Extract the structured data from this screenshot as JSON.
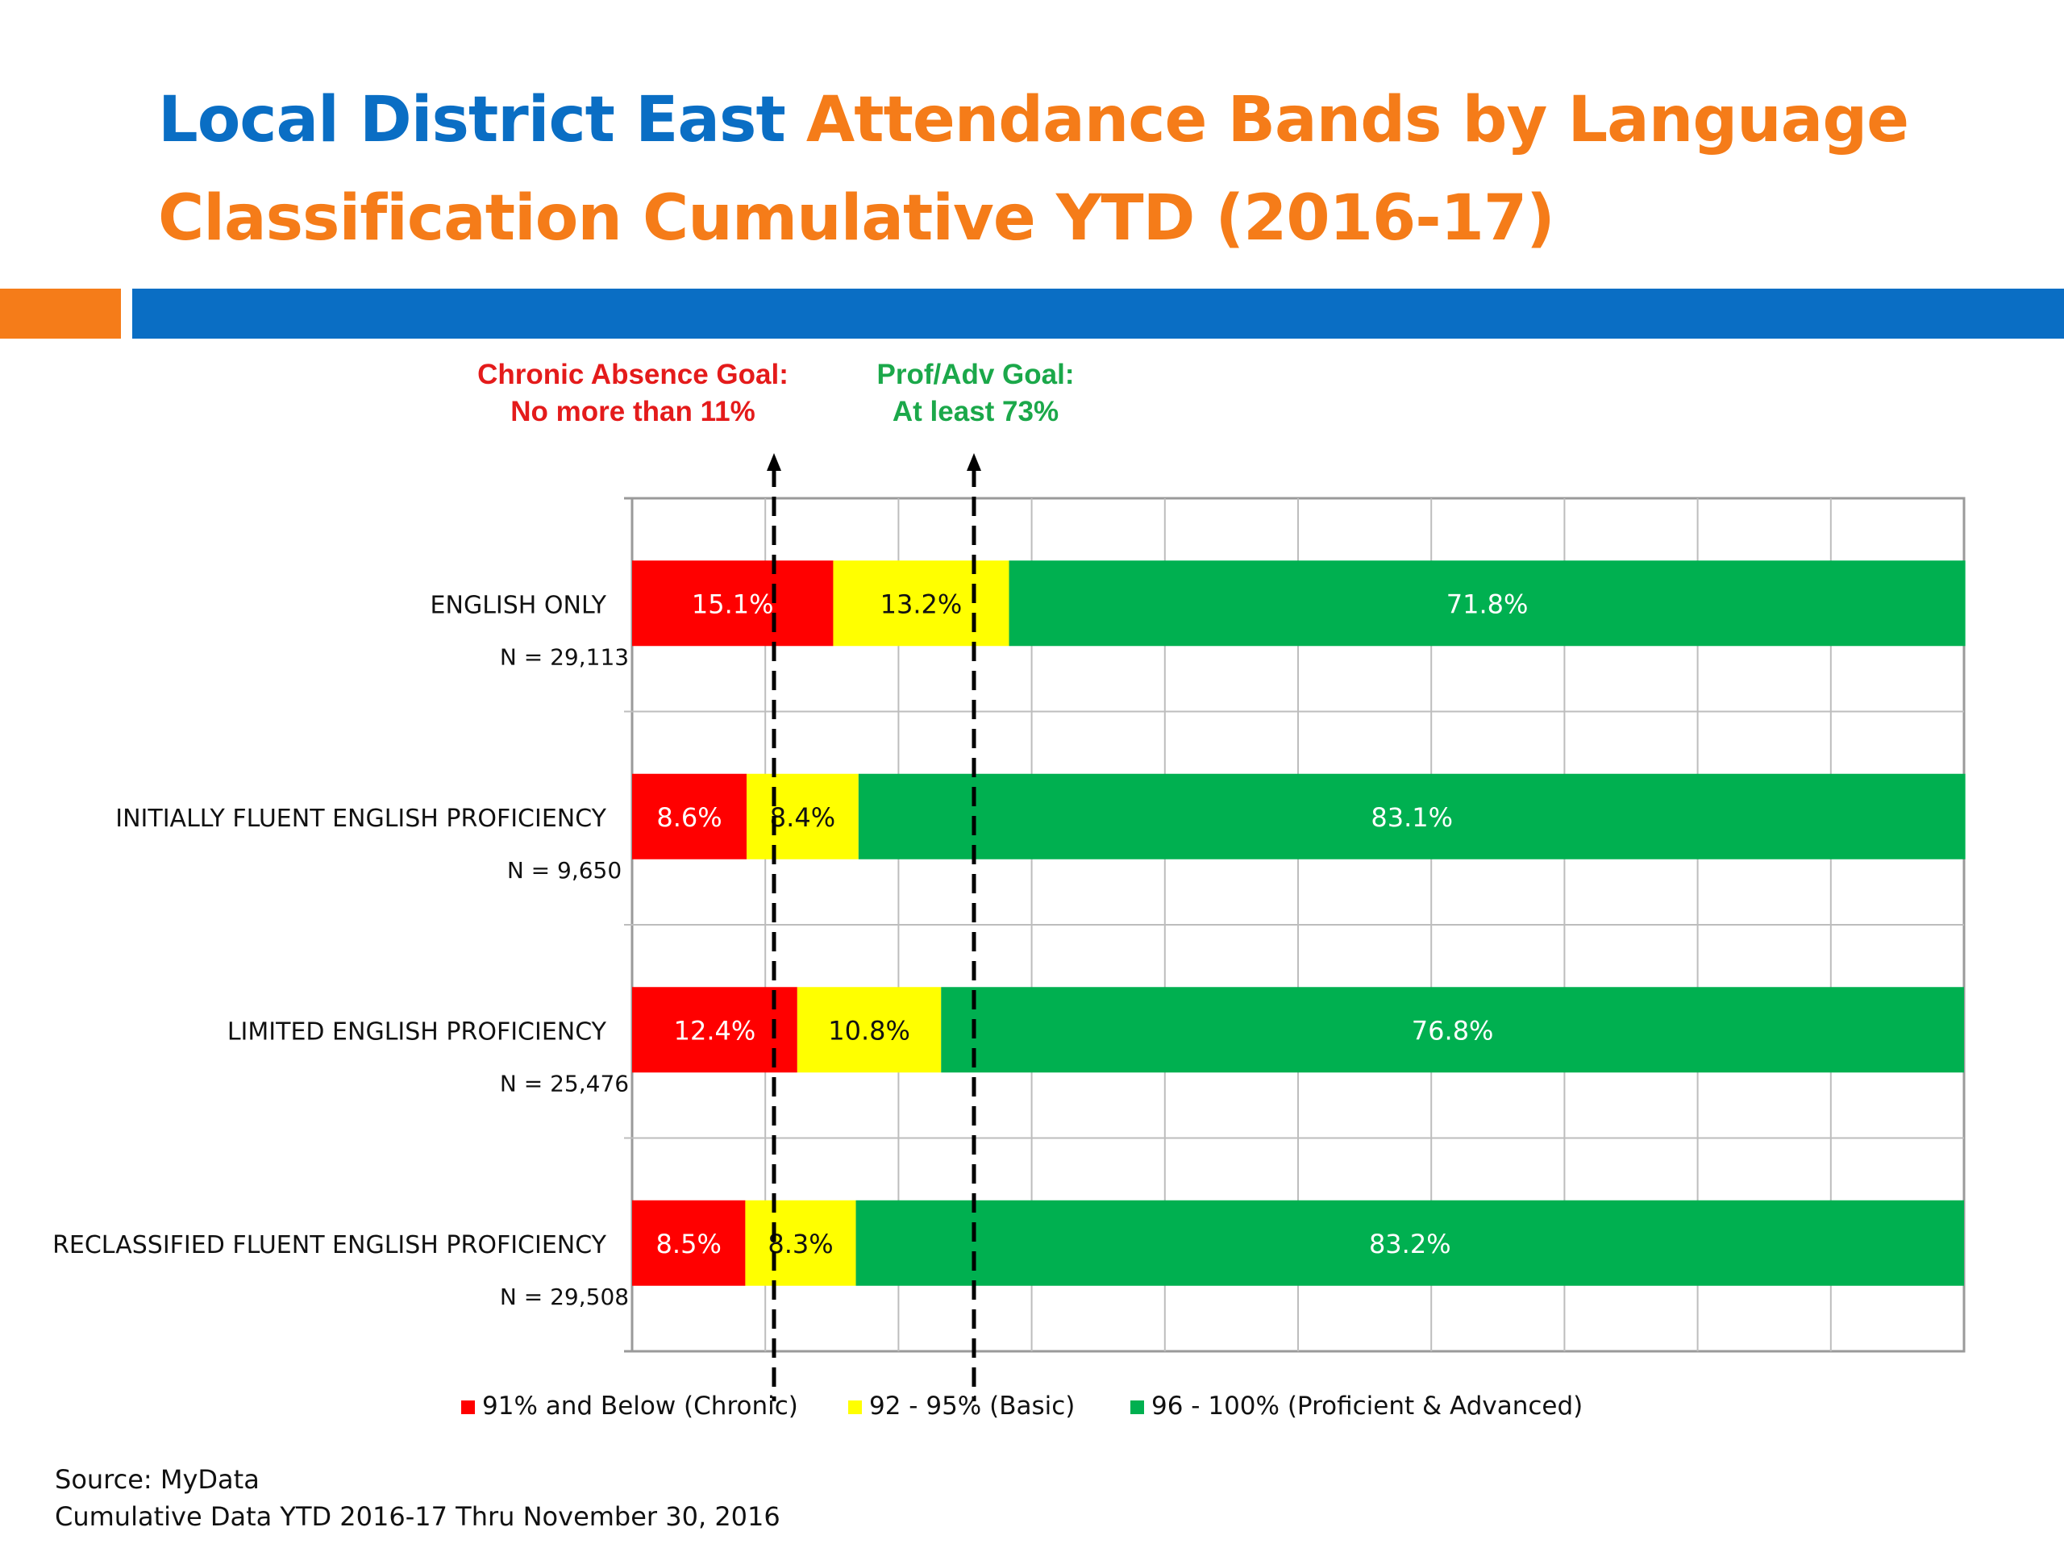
{
  "title": {
    "part1": "Local District East",
    "part2": "Attendance Bands by Language Classification Cumulative YTD (2016-17)"
  },
  "goals": [
    {
      "line1": "Chronic Absence Goal:",
      "line2": "No more than 11%",
      "value": 11,
      "color": "#E41B1B"
    },
    {
      "line1": "Prof/Adv Goal:",
      "line2": "At least 73%",
      "value": 73,
      "color": "#1BA84A"
    }
  ],
  "chart_data": {
    "type": "bar",
    "orientation": "horizontal",
    "stacked": true,
    "xlim": [
      0,
      100
    ],
    "grid": true,
    "legend_position": "bottom",
    "categories": [
      "ENGLISH ONLY",
      "INITIALLY FLUENT ENGLISH PROFICIENCY",
      "LIMITED ENGLISH PROFICIENCY",
      "RECLASSIFIED FLUENT ENGLISH PROFICIENCY"
    ],
    "category_n": [
      "N = 29,113",
      "N = 9,650",
      "N = 25,476",
      "N = 29,508"
    ],
    "series": [
      {
        "name": "91% and Below (Chronic)",
        "color": "#FF0000",
        "values": [
          15.1,
          8.6,
          12.4,
          8.5
        ],
        "labels": [
          "15.1%",
          "8.6%",
          "12.4%",
          "8.5%"
        ],
        "label_color": "#ffffff"
      },
      {
        "name": "92 - 95% (Basic)",
        "color": "#FFFF00",
        "values": [
          13.2,
          8.4,
          10.8,
          8.3
        ],
        "labels": [
          "13.2%",
          "8.4%",
          "10.8%",
          "8.3%"
        ],
        "label_color": "#111111"
      },
      {
        "name": "96 - 100% (Proficient & Advanced)",
        "color": "#00B050",
        "values": [
          71.8,
          83.1,
          76.8,
          83.2
        ],
        "labels": [
          "71.8%",
          "83.1%",
          "76.8%",
          "83.2%"
        ],
        "label_color": "#ffffff"
      }
    ]
  },
  "source": {
    "line1": "Source: MyData",
    "line2": "Cumulative Data  YTD 2016-17 Thru November 30, 2016"
  }
}
